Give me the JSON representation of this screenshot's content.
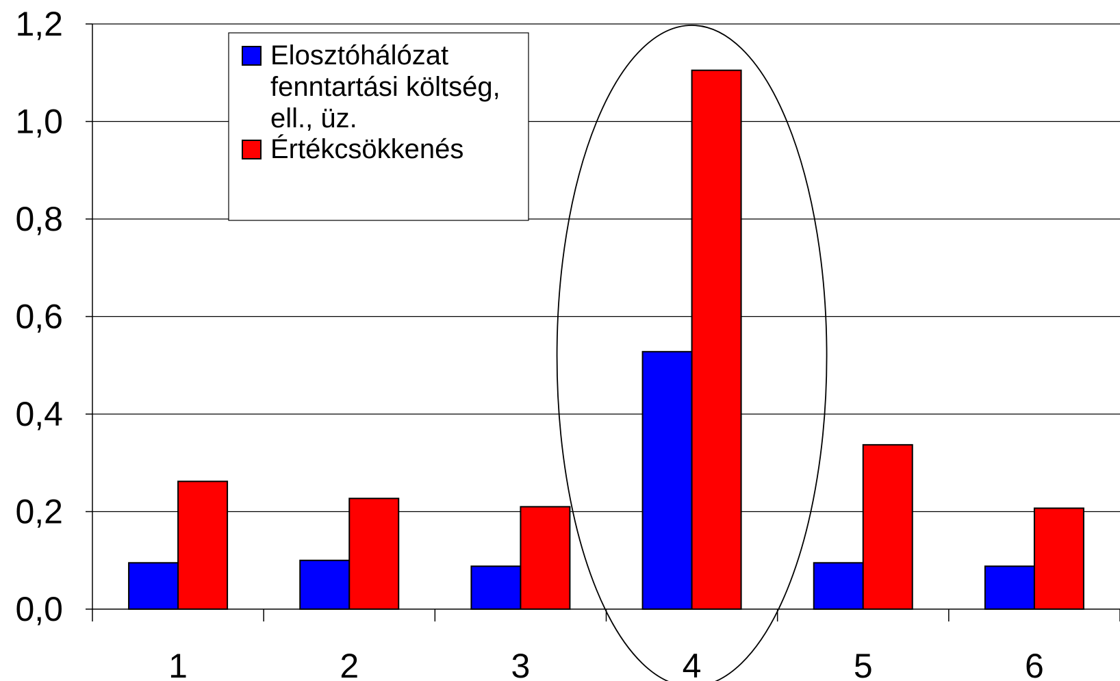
{
  "chart_data": {
    "type": "bar",
    "categories": [
      "1",
      "2",
      "3",
      "4",
      "5",
      "6"
    ],
    "series": [
      {
        "name": "Elosztóhálózat fenntartási költség, ell., üz.",
        "name_lines": [
          "Elosztóhálózat",
          "fenntartási költség,",
          "ell., üz."
        ],
        "color": "#0000ff",
        "values": [
          0.095,
          0.1,
          0.088,
          0.528,
          0.095,
          0.088
        ]
      },
      {
        "name": "Értékcsökkenés",
        "name_lines": [
          "Értékcsökkenés"
        ],
        "color": "#ff0000",
        "values": [
          0.262,
          0.227,
          0.21,
          1.105,
          0.337,
          0.207
        ]
      }
    ],
    "ylim": [
      0,
      1.2
    ],
    "yticks": [
      "0,0",
      "0,2",
      "0,4",
      "0,6",
      "0,8",
      "1,0",
      "1,2"
    ],
    "grid": true,
    "legend_position": "top-left",
    "annotation": "ellipse highlighting category 4",
    "title": "",
    "xlabel": "",
    "ylabel": ""
  }
}
